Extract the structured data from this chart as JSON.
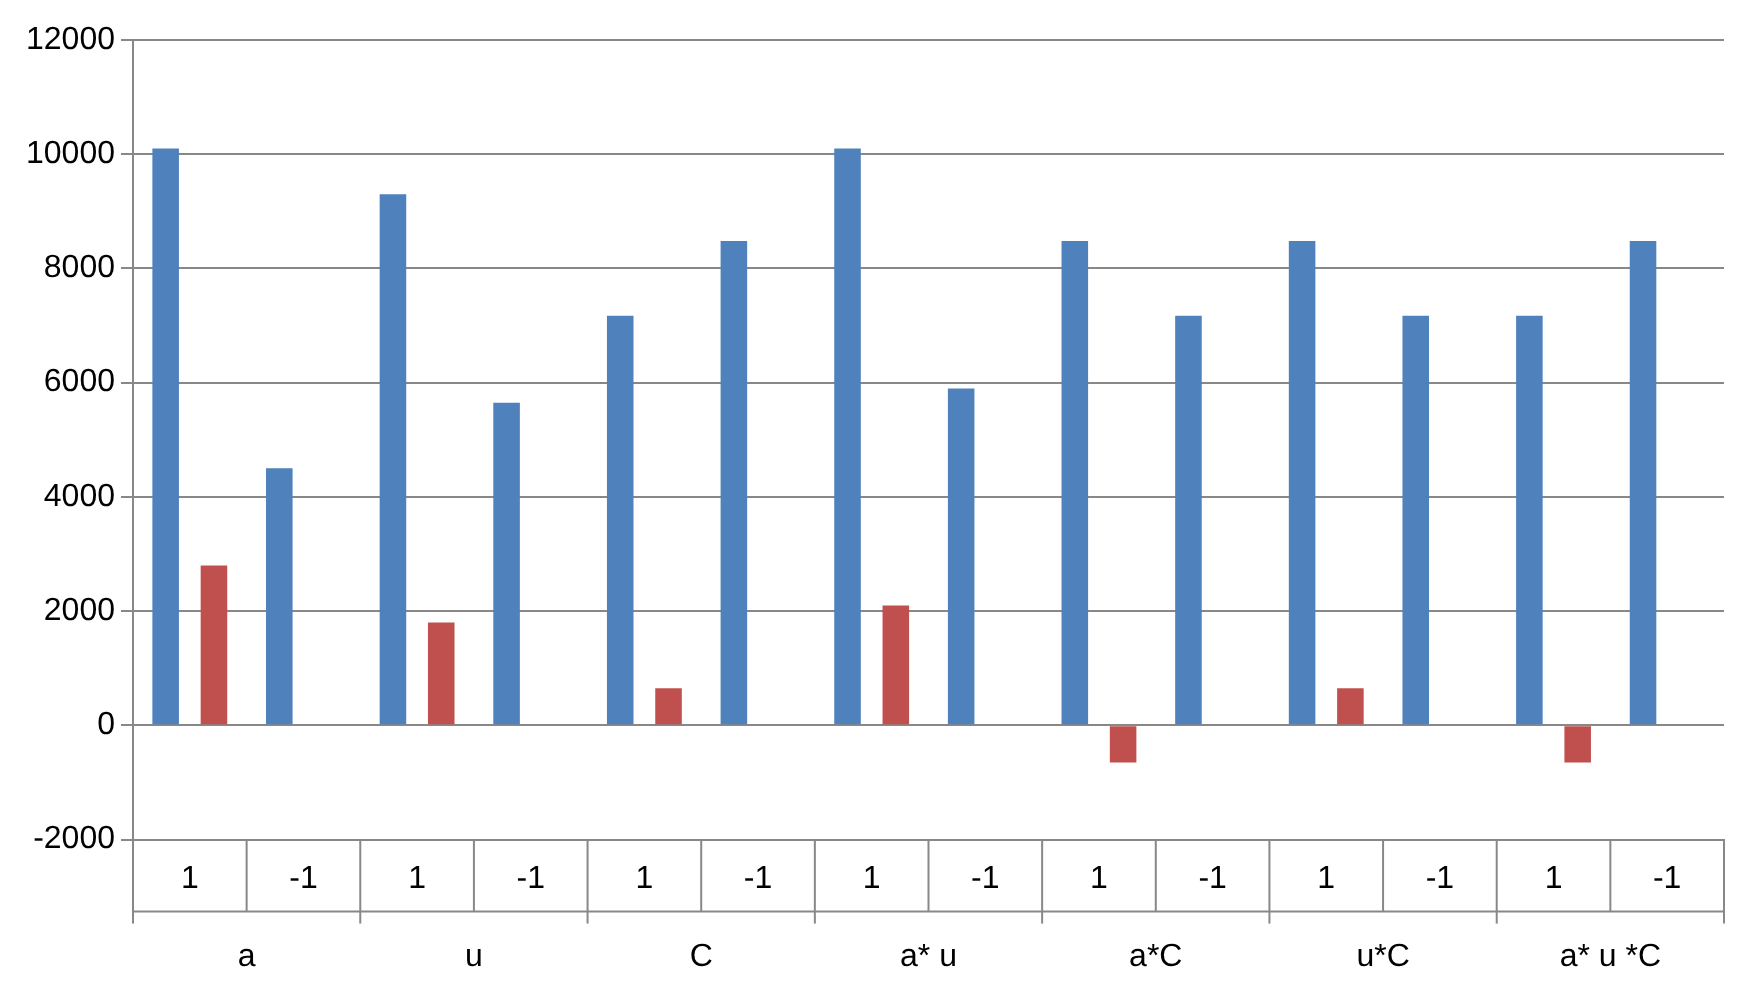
{
  "chart_data": {
    "type": "bar",
    "categories": [
      "1",
      "-1",
      "1",
      "-1",
      "1",
      "-1",
      "1",
      "-1",
      "1",
      "-1",
      "1",
      "-1",
      "1",
      "-1"
    ],
    "annotations": [
      "a",
      "u",
      "C",
      "a* u",
      "a*C",
      "u*C",
      "a* u *C"
    ],
    "series": [
      {
        "color": "#4f81bd",
        "values": [
          10100,
          4500,
          9300,
          5650,
          7170,
          8480,
          10100,
          5900,
          8480,
          7170,
          8480,
          7170,
          7170,
          8480
        ]
      },
      {
        "color": "#c0504d",
        "values": [
          2800,
          null,
          1800,
          null,
          650,
          null,
          2100,
          null,
          -650,
          null,
          650,
          null,
          -650,
          null
        ]
      }
    ],
    "ylim": [
      -2000,
      12000
    ],
    "yticks": [
      -2000,
      0,
      2000,
      4000,
      6000,
      8000,
      10000,
      12000
    ],
    "grid": "y",
    "legend": false
  }
}
